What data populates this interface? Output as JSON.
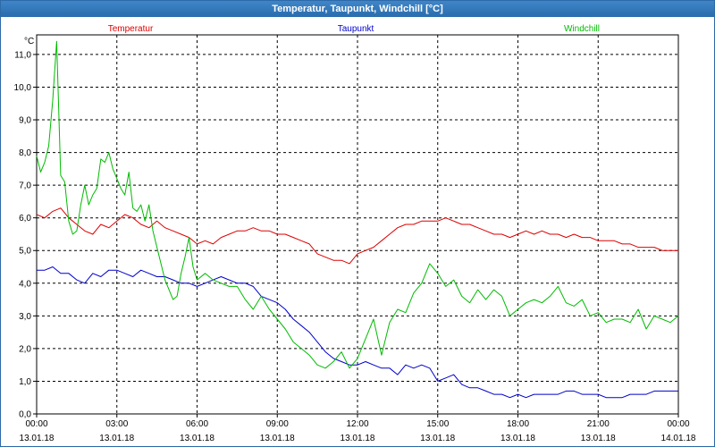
{
  "window": {
    "title": "Temperatur, Taupunkt, Windchill [°C]"
  },
  "colors": {
    "temperatur": "#dd0000",
    "taupunkt": "#0000cc",
    "windchill": "#00bb00",
    "grid": "#000000",
    "accent": "#2a6cad"
  },
  "chart_data": {
    "type": "line",
    "title": "Temperatur, Taupunkt, Windchill [°C]",
    "ylabel": "°C",
    "xlabel": "",
    "ylim": [
      0.0,
      11.6
    ],
    "xlim": [
      0,
      24
    ],
    "grid": true,
    "legend_position": "top",
    "yticks": [
      "0,0",
      "1,0",
      "2,0",
      "3,0",
      "4,0",
      "5,0",
      "6,0",
      "7,0",
      "8,0",
      "9,0",
      "10,0",
      "11,0"
    ],
    "xticks": [
      {
        "time": "00:00",
        "date": "13.01.18"
      },
      {
        "time": "03:00",
        "date": "13.01.18"
      },
      {
        "time": "06:00",
        "date": "13.01.18"
      },
      {
        "time": "09:00",
        "date": "13.01.18"
      },
      {
        "time": "12:00",
        "date": "13.01.18"
      },
      {
        "time": "15:00",
        "date": "13.01.18"
      },
      {
        "time": "18:00",
        "date": "13.01.18"
      },
      {
        "time": "21:00",
        "date": "13.01.18"
      },
      {
        "time": "00:00",
        "date": "14.01.18"
      }
    ],
    "series": [
      {
        "name": "Temperatur",
        "color": "#dd0000",
        "x": [
          0,
          0.3,
          0.6,
          0.9,
          1.2,
          1.5,
          1.8,
          2.1,
          2.4,
          2.7,
          3.0,
          3.3,
          3.6,
          3.9,
          4.2,
          4.5,
          4.8,
          5.1,
          5.4,
          5.7,
          6.0,
          6.3,
          6.6,
          6.9,
          7.2,
          7.5,
          7.8,
          8.1,
          8.4,
          8.7,
          9.0,
          9.3,
          9.6,
          9.9,
          10.2,
          10.5,
          10.8,
          11.1,
          11.4,
          11.7,
          12.0,
          12.3,
          12.6,
          12.9,
          13.2,
          13.5,
          13.8,
          14.1,
          14.4,
          14.7,
          15.0,
          15.3,
          15.6,
          15.9,
          16.2,
          16.5,
          16.8,
          17.1,
          17.4,
          17.7,
          18.0,
          18.3,
          18.6,
          18.9,
          19.2,
          19.5,
          19.8,
          20.1,
          20.4,
          20.7,
          21.0,
          21.3,
          21.6,
          21.9,
          22.2,
          22.5,
          22.8,
          23.1,
          23.4,
          23.7,
          24.0
        ],
        "values": [
          6.1,
          6.0,
          6.2,
          6.3,
          6.0,
          5.8,
          5.6,
          5.5,
          5.8,
          5.7,
          5.9,
          6.1,
          6.0,
          5.8,
          5.7,
          5.9,
          5.7,
          5.6,
          5.5,
          5.4,
          5.2,
          5.3,
          5.2,
          5.4,
          5.5,
          5.6,
          5.6,
          5.7,
          5.6,
          5.6,
          5.5,
          5.5,
          5.4,
          5.3,
          5.2,
          4.9,
          4.8,
          4.7,
          4.7,
          4.6,
          4.9,
          5.0,
          5.1,
          5.3,
          5.5,
          5.7,
          5.8,
          5.8,
          5.9,
          5.9,
          5.9,
          6.0,
          5.9,
          5.8,
          5.8,
          5.7,
          5.6,
          5.5,
          5.5,
          5.4,
          5.5,
          5.6,
          5.5,
          5.6,
          5.5,
          5.5,
          5.4,
          5.5,
          5.4,
          5.4,
          5.3,
          5.3,
          5.3,
          5.2,
          5.2,
          5.1,
          5.1,
          5.1,
          5.0,
          5.0,
          5.0
        ]
      },
      {
        "name": "Taupunkt",
        "color": "#0000cc",
        "x": [
          0,
          0.3,
          0.6,
          0.9,
          1.2,
          1.5,
          1.8,
          2.1,
          2.4,
          2.7,
          3.0,
          3.3,
          3.6,
          3.9,
          4.2,
          4.5,
          4.8,
          5.1,
          5.4,
          5.7,
          6.0,
          6.3,
          6.6,
          6.9,
          7.2,
          7.5,
          7.8,
          8.1,
          8.4,
          8.7,
          9.0,
          9.3,
          9.6,
          9.9,
          10.2,
          10.5,
          10.8,
          11.1,
          11.4,
          11.7,
          12.0,
          12.3,
          12.6,
          12.9,
          13.2,
          13.5,
          13.8,
          14.1,
          14.4,
          14.7,
          15.0,
          15.3,
          15.6,
          15.9,
          16.2,
          16.5,
          16.8,
          17.1,
          17.4,
          17.7,
          18.0,
          18.3,
          18.6,
          18.9,
          19.2,
          19.5,
          19.8,
          20.1,
          20.4,
          20.7,
          21.0,
          21.3,
          21.6,
          21.9,
          22.2,
          22.5,
          22.8,
          23.1,
          23.4,
          23.7,
          24.0
        ],
        "values": [
          4.4,
          4.4,
          4.5,
          4.3,
          4.3,
          4.1,
          4.0,
          4.3,
          4.2,
          4.4,
          4.4,
          4.3,
          4.2,
          4.4,
          4.3,
          4.2,
          4.2,
          4.1,
          4.0,
          4.0,
          3.9,
          4.0,
          4.1,
          4.2,
          4.1,
          4.0,
          4.0,
          3.9,
          3.6,
          3.5,
          3.4,
          3.2,
          2.9,
          2.7,
          2.5,
          2.2,
          1.9,
          1.7,
          1.6,
          1.5,
          1.5,
          1.6,
          1.5,
          1.4,
          1.4,
          1.2,
          1.5,
          1.4,
          1.5,
          1.4,
          1.0,
          1.1,
          1.2,
          0.9,
          0.8,
          0.8,
          0.7,
          0.6,
          0.6,
          0.5,
          0.6,
          0.5,
          0.6,
          0.6,
          0.6,
          0.6,
          0.7,
          0.7,
          0.6,
          0.6,
          0.6,
          0.5,
          0.5,
          0.5,
          0.6,
          0.6,
          0.6,
          0.7,
          0.7,
          0.7,
          0.7
        ]
      },
      {
        "name": "Windchill",
        "color": "#00bb00",
        "x": [
          0,
          0.15,
          0.3,
          0.45,
          0.6,
          0.75,
          0.9,
          1.05,
          1.2,
          1.35,
          1.5,
          1.65,
          1.8,
          1.95,
          2.1,
          2.25,
          2.4,
          2.55,
          2.7,
          2.85,
          3.0,
          3.15,
          3.3,
          3.45,
          3.6,
          3.75,
          3.9,
          4.05,
          4.2,
          4.35,
          4.5,
          4.65,
          4.8,
          4.95,
          5.1,
          5.25,
          5.4,
          5.55,
          5.7,
          5.85,
          6.0,
          6.3,
          6.6,
          6.9,
          7.2,
          7.5,
          7.8,
          8.1,
          8.4,
          8.7,
          9.0,
          9.3,
          9.6,
          9.9,
          10.2,
          10.5,
          10.8,
          11.1,
          11.4,
          11.7,
          12.0,
          12.3,
          12.6,
          12.9,
          13.2,
          13.5,
          13.8,
          14.1,
          14.4,
          14.7,
          15.0,
          15.3,
          15.6,
          15.9,
          16.2,
          16.5,
          16.8,
          17.1,
          17.4,
          17.7,
          18.0,
          18.3,
          18.6,
          18.9,
          19.2,
          19.5,
          19.8,
          20.1,
          20.4,
          20.7,
          21.0,
          21.3,
          21.6,
          21.9,
          22.2,
          22.5,
          22.8,
          23.1,
          23.4,
          23.7,
          24.0
        ],
        "values": [
          7.9,
          7.4,
          7.7,
          8.2,
          9.6,
          11.4,
          7.3,
          7.1,
          5.9,
          5.5,
          5.6,
          6.4,
          7.0,
          6.4,
          6.7,
          6.9,
          7.8,
          7.7,
          8.0,
          7.5,
          7.2,
          6.9,
          6.7,
          7.4,
          6.3,
          6.2,
          6.4,
          5.9,
          6.4,
          5.6,
          5.1,
          4.6,
          4.1,
          3.8,
          3.5,
          3.6,
          4.3,
          4.8,
          5.4,
          4.5,
          4.1,
          4.3,
          4.1,
          4.0,
          3.9,
          3.9,
          3.5,
          3.2,
          3.6,
          3.2,
          2.9,
          2.6,
          2.2,
          2.0,
          1.8,
          1.5,
          1.4,
          1.6,
          1.9,
          1.4,
          1.7,
          2.3,
          2.9,
          1.8,
          2.8,
          3.2,
          3.1,
          3.7,
          4.0,
          4.6,
          4.3,
          3.9,
          4.1,
          3.6,
          3.4,
          3.8,
          3.5,
          3.8,
          3.6,
          3.0,
          3.2,
          3.4,
          3.5,
          3.4,
          3.6,
          3.9,
          3.4,
          3.3,
          3.5,
          3.0,
          3.1,
          2.8,
          2.9,
          2.9,
          2.8,
          3.2,
          2.6,
          3.0,
          2.9,
          2.8,
          3.0
        ]
      }
    ]
  }
}
